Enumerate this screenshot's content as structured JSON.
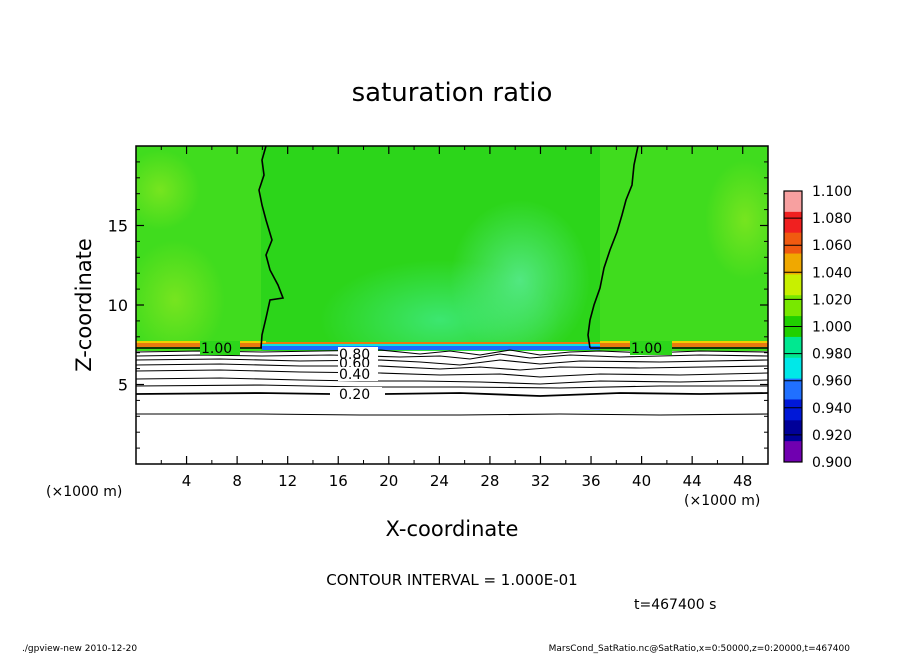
{
  "chart_data": {
    "type": "heatmap",
    "title": "saturation ratio",
    "xlabel": "X-coordinate",
    "ylabel": "Z-coordinate",
    "x_units": "(×1000 m)",
    "y_units": "(×1000 m)",
    "xlim": [
      0,
      50
    ],
    "ylim": [
      0,
      20
    ],
    "x_ticks": [
      4,
      8,
      12,
      16,
      20,
      24,
      28,
      32,
      36,
      40,
      44,
      48
    ],
    "y_ticks": [
      5,
      10,
      15
    ],
    "colorbar": {
      "labels": [
        "1.100",
        "1.080",
        "1.060",
        "1.040",
        "1.020",
        "1.000",
        "0.980",
        "0.960",
        "0.940",
        "0.920",
        "0.900"
      ],
      "colors": [
        "#f7a0a0",
        "#f02020",
        "#f05a10",
        "#f0a800",
        "#c8f000",
        "#78e800",
        "#20d000",
        "#00e890",
        "#00e8e8",
        "#2070ff",
        "#0018d8",
        "#000098",
        "#7000b0"
      ]
    },
    "contour_interval_text": "CONTOUR INTERVAL = 1.000E-01",
    "contours": [
      {
        "level": 1.0,
        "label": "1.00"
      },
      {
        "level": 0.8,
        "label": "0.80"
      },
      {
        "level": 0.6,
        "label": "0.60"
      },
      {
        "level": 0.4,
        "label": "0.40"
      },
      {
        "level": 0.2,
        "label": "0.20"
      }
    ],
    "saturation_boundary_z": 7.3,
    "time_label": "t=467400 s"
  },
  "footer": {
    "left": "./gpview-new  2010-12-20",
    "right": "MarsCond_SatRatio.nc@SatRatio,x=0:50000,z=0:20000,t=467400"
  }
}
